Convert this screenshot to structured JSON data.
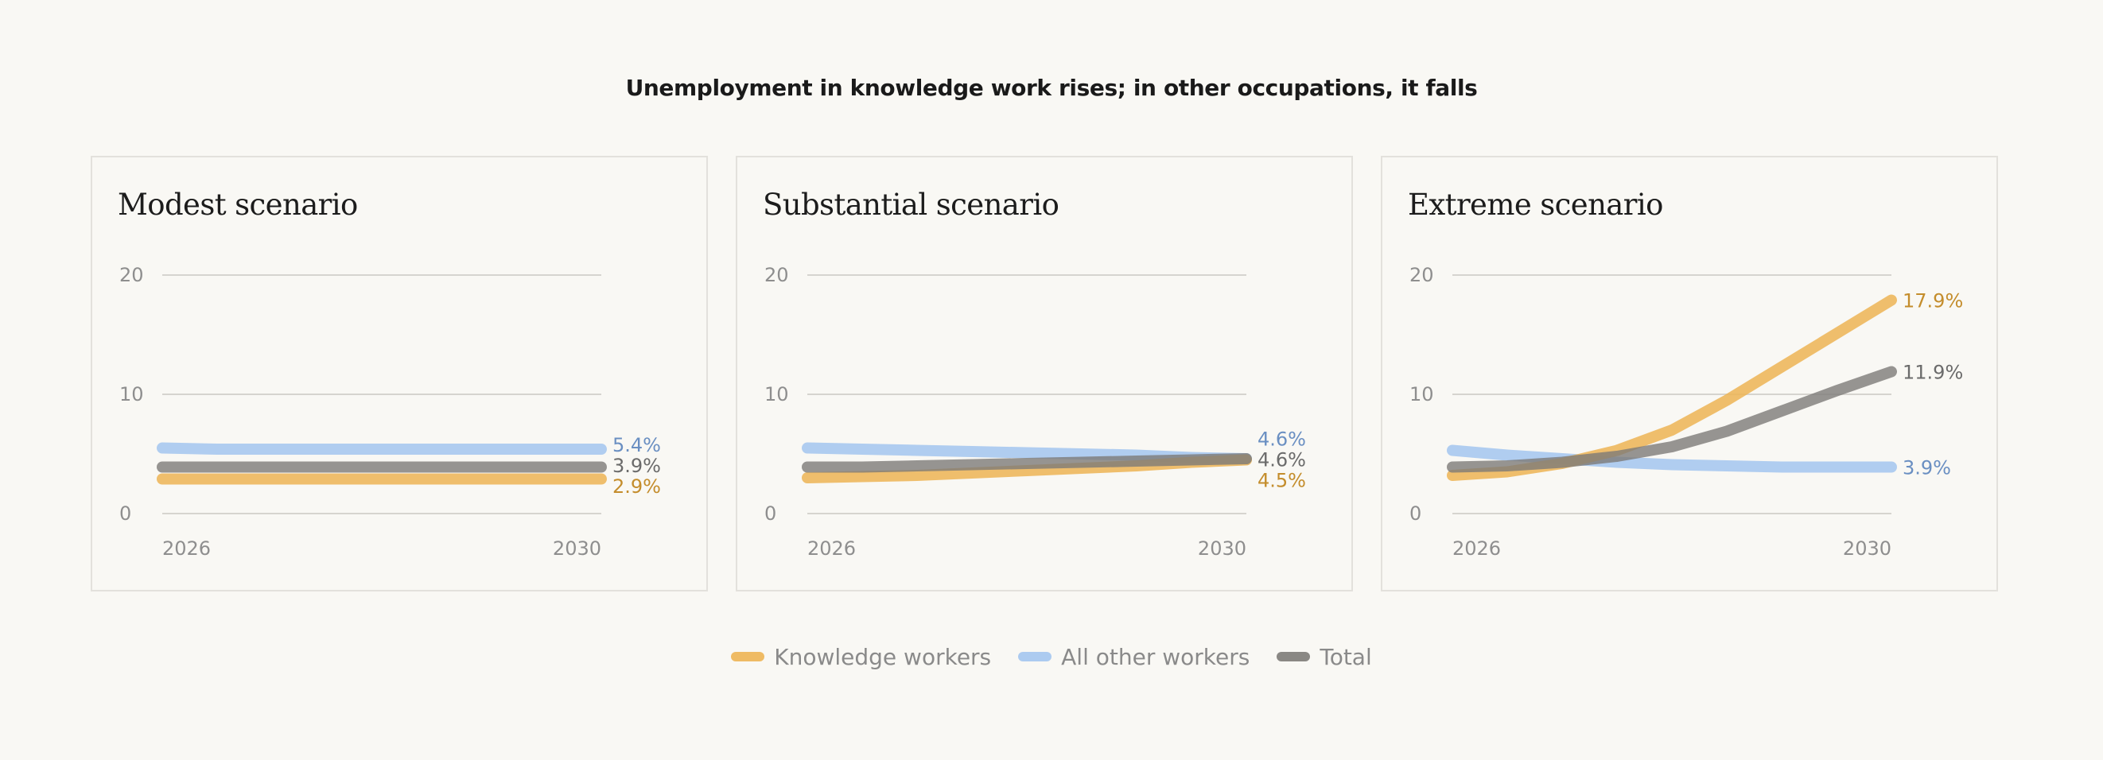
{
  "title": "Unemployment in knowledge work rises; in other occupations, it falls",
  "colors": {
    "knowledge": "#edb454",
    "other": "#a3c5ef",
    "total": "#7d7b78",
    "knowledge_label": "#c48d2c",
    "other_label": "#6a8fc2",
    "total_label": "#6b6b6b",
    "grid": "#d6d4cf",
    "tick": "#8e8e8e"
  },
  "legend": {
    "items": [
      {
        "key": "knowledge",
        "label": "Knowledge workers"
      },
      {
        "key": "other",
        "label": "All other workers"
      },
      {
        "key": "total",
        "label": "Total"
      }
    ]
  },
  "chart_data": [
    {
      "type": "line",
      "title": "Modest scenario",
      "xlabel": "",
      "ylabel": "",
      "xlim": [
        2026,
        2030
      ],
      "ylim": [
        0,
        20
      ],
      "x_ticks": [
        "2026",
        "2030"
      ],
      "y_ticks": [
        "0",
        "10",
        "20"
      ],
      "grid": true,
      "x": [
        2026,
        2026.5,
        2027,
        2027.5,
        2028,
        2028.5,
        2029,
        2029.5,
        2030
      ],
      "series": [
        {
          "name": "Knowledge workers",
          "key": "knowledge",
          "values": [
            2.9,
            2.9,
            2.9,
            2.9,
            2.9,
            2.9,
            2.9,
            2.9,
            2.9
          ],
          "end_label": "2.9%"
        },
        {
          "name": "All other workers",
          "key": "other",
          "values": [
            5.5,
            5.4,
            5.4,
            5.4,
            5.4,
            5.4,
            5.4,
            5.4,
            5.4
          ],
          "end_label": "5.4%"
        },
        {
          "name": "Total",
          "key": "total",
          "values": [
            3.9,
            3.9,
            3.9,
            3.9,
            3.9,
            3.9,
            3.9,
            3.9,
            3.9
          ],
          "end_label": "3.9%"
        }
      ]
    },
    {
      "type": "line",
      "title": "Substantial scenario",
      "xlabel": "",
      "ylabel": "",
      "xlim": [
        2026,
        2030
      ],
      "ylim": [
        0,
        20
      ],
      "x_ticks": [
        "2026",
        "2030"
      ],
      "y_ticks": [
        "0",
        "10",
        "20"
      ],
      "grid": true,
      "x": [
        2026,
        2026.5,
        2027,
        2027.5,
        2028,
        2028.5,
        2029,
        2029.5,
        2030
      ],
      "series": [
        {
          "name": "Knowledge workers",
          "key": "knowledge",
          "values": [
            3.0,
            3.1,
            3.2,
            3.4,
            3.6,
            3.8,
            4.0,
            4.3,
            4.5
          ],
          "end_label": "4.5%"
        },
        {
          "name": "All other workers",
          "key": "other",
          "values": [
            5.5,
            5.4,
            5.3,
            5.2,
            5.1,
            5.0,
            4.9,
            4.7,
            4.6
          ],
          "end_label": "4.6%"
        },
        {
          "name": "Total",
          "key": "total",
          "values": [
            3.9,
            3.9,
            4.0,
            4.1,
            4.2,
            4.3,
            4.4,
            4.5,
            4.6
          ],
          "end_label": "4.6%"
        }
      ]
    },
    {
      "type": "line",
      "title": "Extreme scenario",
      "xlabel": "",
      "ylabel": "",
      "xlim": [
        2026,
        2030
      ],
      "ylim": [
        0,
        20
      ],
      "x_ticks": [
        "2026",
        "2030"
      ],
      "y_ticks": [
        "0",
        "10",
        "20"
      ],
      "grid": true,
      "x": [
        2026,
        2026.5,
        2027,
        2027.5,
        2028,
        2028.5,
        2029,
        2029.5,
        2030
      ],
      "series": [
        {
          "name": "Knowledge workers",
          "key": "knowledge",
          "values": [
            3.2,
            3.5,
            4.2,
            5.3,
            7.0,
            9.5,
            12.3,
            15.1,
            17.9
          ],
          "end_label": "17.9%"
        },
        {
          "name": "All other workers",
          "key": "other",
          "values": [
            5.3,
            4.9,
            4.6,
            4.3,
            4.1,
            4.0,
            3.9,
            3.9,
            3.9
          ],
          "end_label": "3.9%"
        },
        {
          "name": "Total",
          "key": "total",
          "values": [
            3.9,
            4.0,
            4.3,
            4.8,
            5.6,
            6.9,
            8.6,
            10.3,
            11.9
          ],
          "end_label": "11.9%"
        }
      ]
    }
  ]
}
